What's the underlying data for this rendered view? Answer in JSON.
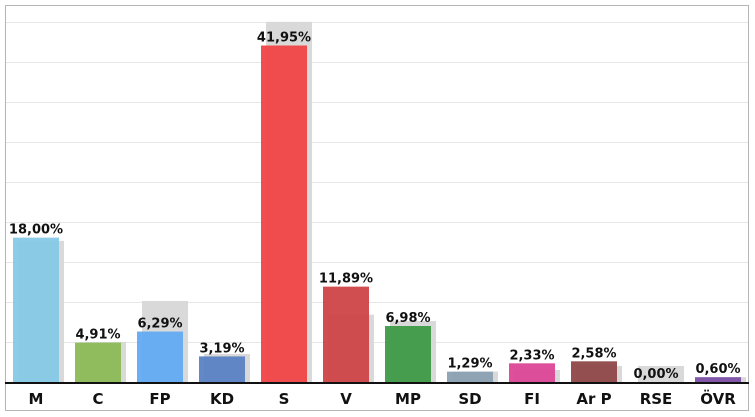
{
  "chart_data": {
    "type": "bar",
    "categories": [
      "M",
      "C",
      "FP",
      "KD",
      "S",
      "V",
      "MP",
      "SD",
      "FI",
      "Ar P",
      "RSE",
      "ÖVR"
    ],
    "series": [
      {
        "values": [
          18.0,
          4.91,
          6.29,
          3.19,
          41.95,
          11.89,
          6.98,
          1.29,
          2.33,
          2.58,
          0.0,
          0.6
        ],
        "labels": [
          "18,00%",
          "4,91%",
          "6,29%",
          "3,19%",
          "41,95%",
          "11,89%",
          "6,98%",
          "1,29%",
          "2,33%",
          "2,58%",
          "0,00%",
          "0,60%"
        ],
        "colors": [
          "#87c9e6",
          "#8cbb57",
          "#62abf2",
          "#5a82c4",
          "#f24446",
          "#cf4547",
          "#3d9a46",
          "#8aa1b2",
          "#dc4796",
          "#8f4848",
          "#cccccc",
          "#7c4fa6"
        ]
      },
      {
        "values": [
          17.6,
          5.0,
          10.1,
          3.5,
          44.9,
          8.4,
          7.6,
          1.3,
          1.5,
          2.0,
          2.0,
          0.6
        ],
        "color": "#d9d9d9"
      }
    ],
    "title": "",
    "xlabel": "",
    "ylabel": "",
    "ylim": [
      0,
      47
    ],
    "grid": true,
    "legend": "none"
  }
}
